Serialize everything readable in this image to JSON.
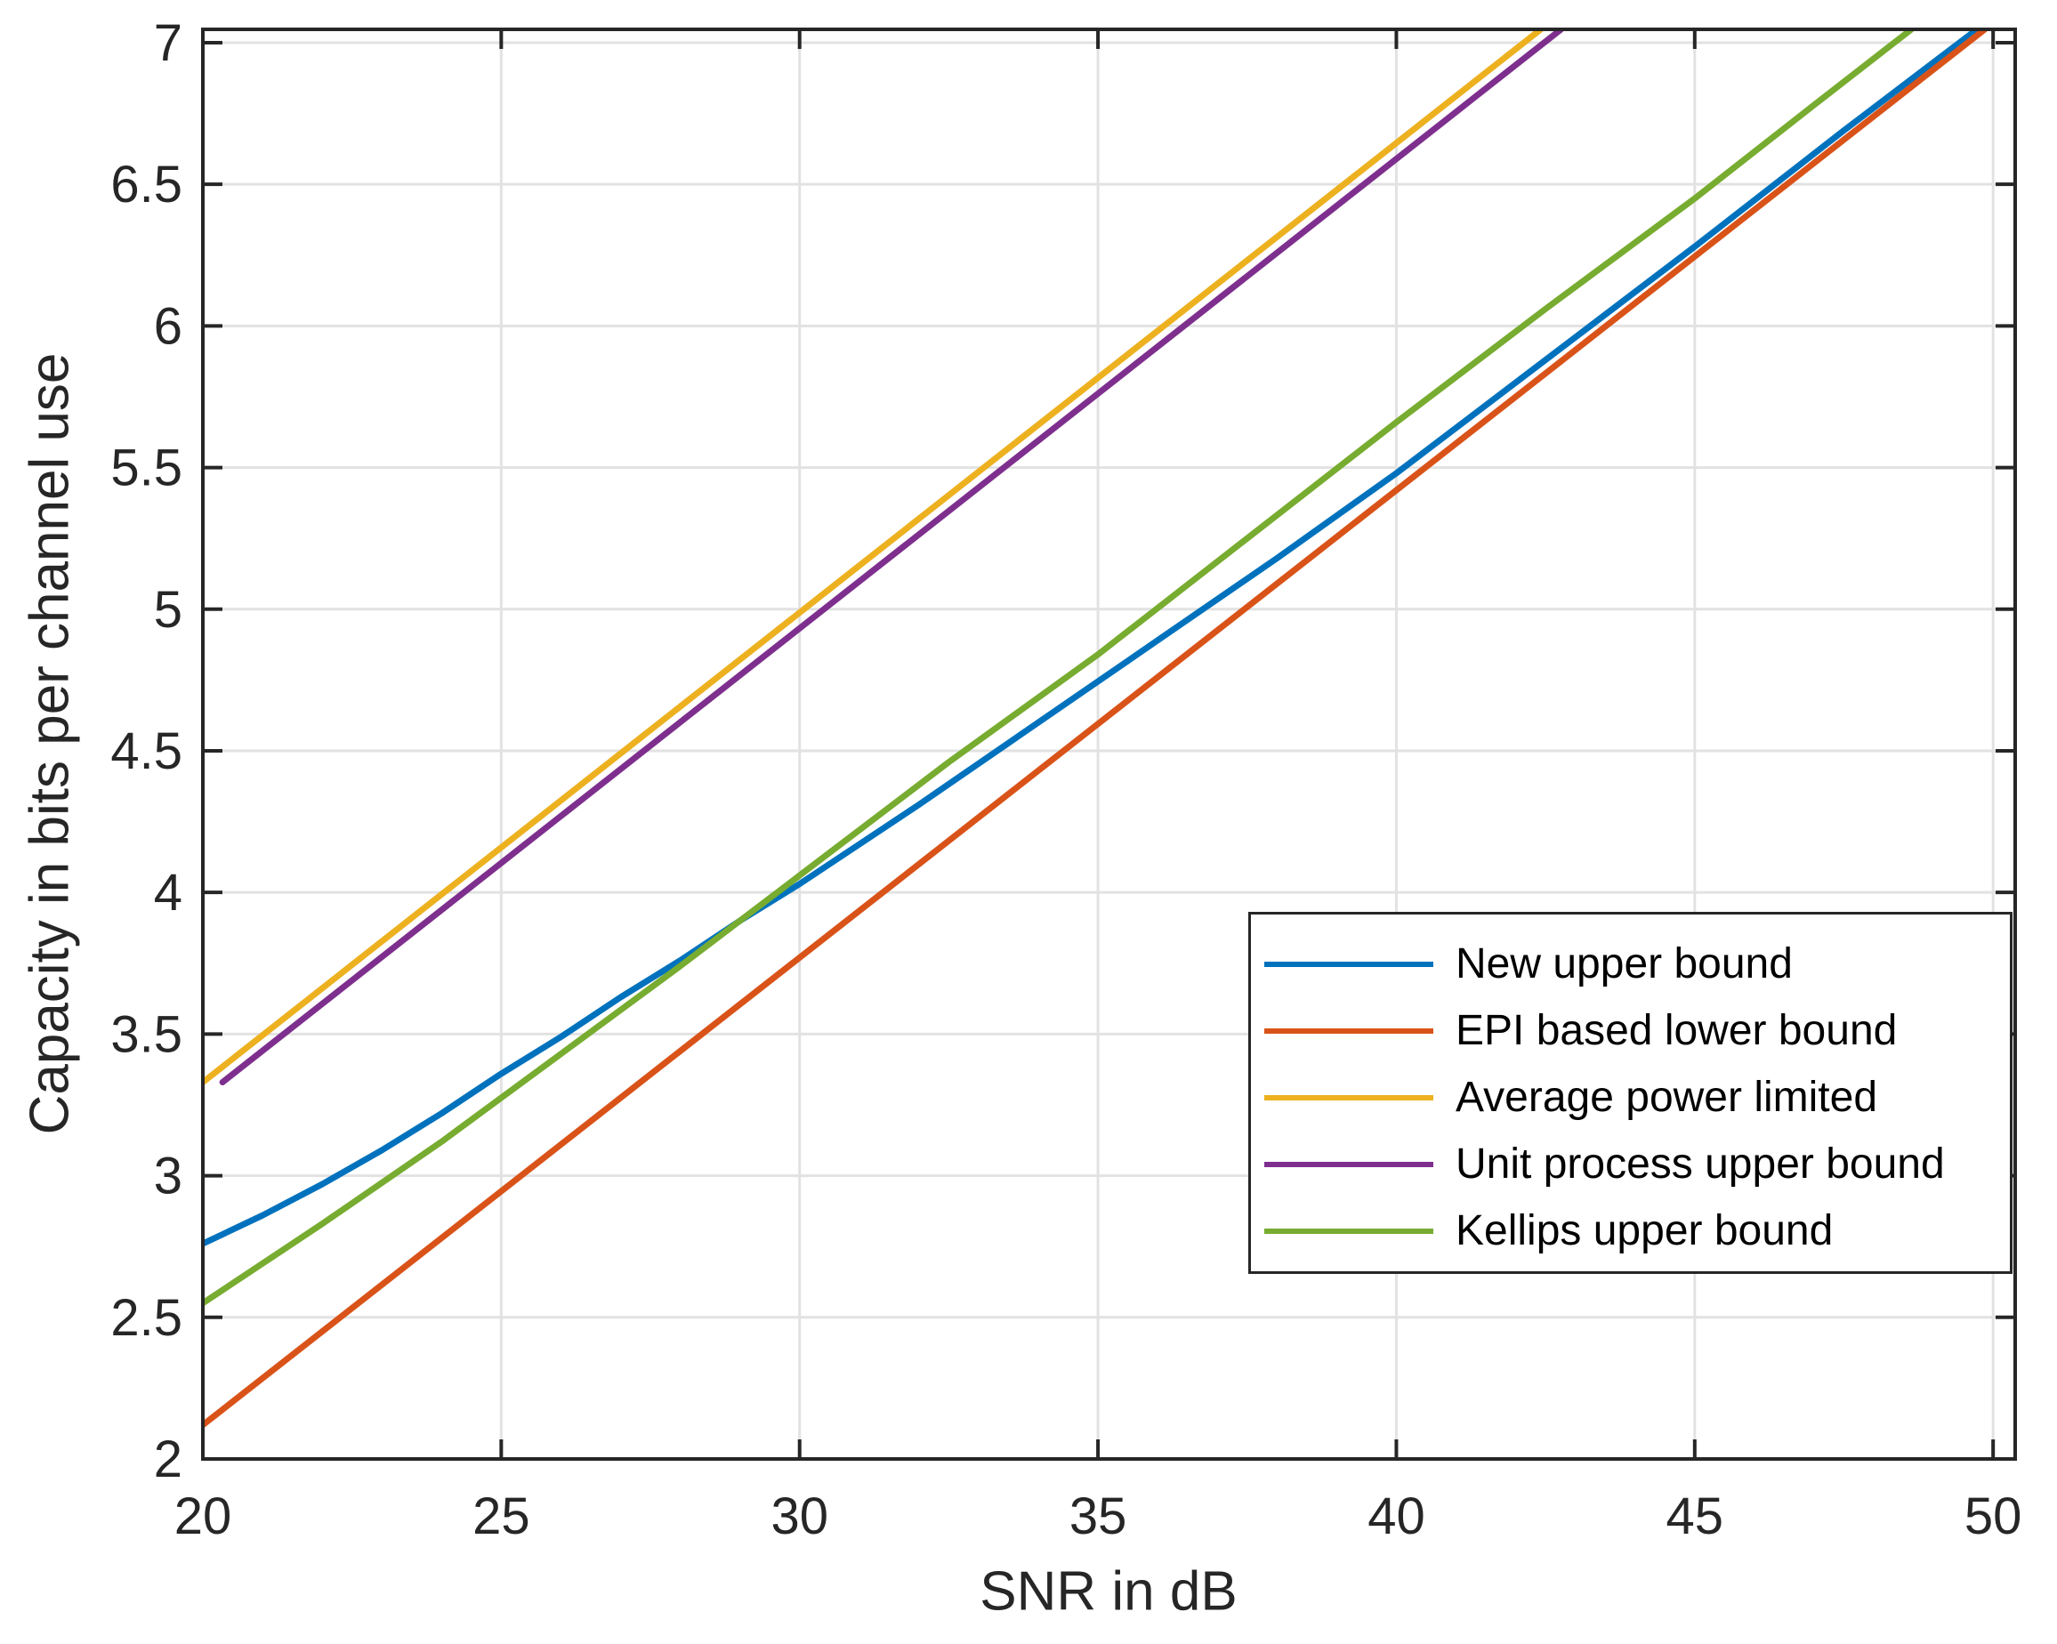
{
  "chart_data": {
    "type": "line",
    "title": "",
    "xlabel": "SNR in dB",
    "ylabel": "Capacity in bits per channel use",
    "xlim": [
      20,
      50.37
    ],
    "ylim": [
      2,
      7.047
    ],
    "xticks": [
      20,
      25,
      30,
      35,
      40,
      45,
      50
    ],
    "yticks": [
      2,
      2.5,
      3,
      3.5,
      4,
      4.5,
      5,
      5.5,
      6,
      6.5,
      7
    ],
    "grid": true,
    "grid_color": "#e2e2e2",
    "axis_color": "#262626",
    "legend_position": "inside-lower-right",
    "series": [
      {
        "name": "New upper bound",
        "color": "#0072BD",
        "x": [
          20,
          21,
          22,
          23,
          24,
          25,
          26,
          27,
          28,
          29,
          30,
          32,
          34,
          36,
          38,
          40,
          42.5,
          45,
          47.5,
          49.73
        ],
        "y": [
          2.76,
          2.86,
          2.97,
          3.09,
          3.22,
          3.36,
          3.49,
          3.63,
          3.76,
          3.9,
          4.03,
          4.31,
          4.6,
          4.89,
          5.18,
          5.48,
          5.88,
          6.28,
          6.69,
          7.047
        ]
      },
      {
        "name": "EPI based lower bound",
        "color": "#D95319",
        "x": [
          20,
          49.86
        ],
        "y": [
          2.12,
          7.047
        ]
      },
      {
        "name": "Average power limited",
        "color": "#EDB120",
        "x": [
          20,
          42.42
        ],
        "y": [
          3.33,
          7.047
        ]
      },
      {
        "name": "Unit process upper bound",
        "color": "#7E2F8E",
        "x": [
          20.33,
          42.76
        ],
        "y": [
          3.33,
          7.047
        ]
      },
      {
        "name": "Kellips upper bound",
        "color": "#77AC30",
        "x": [
          20,
          22,
          24,
          26,
          28,
          30,
          32.5,
          35,
          37.5,
          40,
          42.5,
          45,
          47,
          48.63
        ],
        "y": [
          2.55,
          2.83,
          3.12,
          3.43,
          3.74,
          4.06,
          4.46,
          4.84,
          5.25,
          5.66,
          6.06,
          6.45,
          6.78,
          7.047
        ]
      }
    ]
  }
}
